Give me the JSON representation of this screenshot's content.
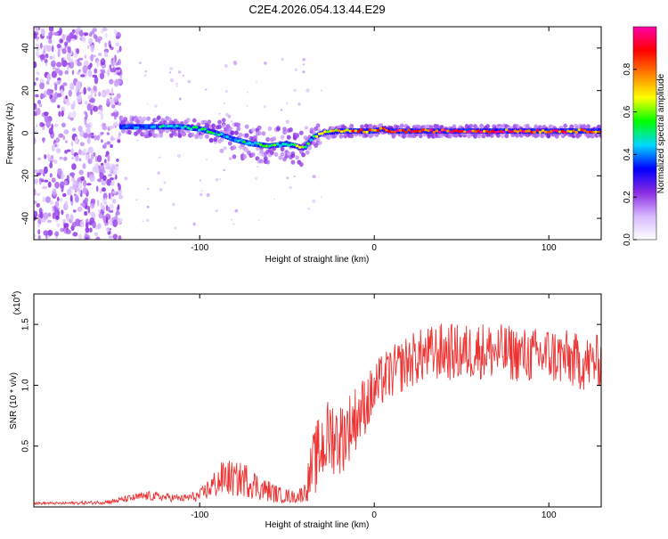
{
  "title": "C2E4.2026.054.13.44.E29",
  "chart_data": [
    {
      "type": "heatmap",
      "name": "spectrogram",
      "xlabel": "Height of straight line (km)",
      "ylabel": "Frequency (Hz)",
      "xlim": [
        -195,
        130
      ],
      "ylim": [
        -50,
        50
      ],
      "xticks": [
        -100,
        0,
        100
      ],
      "xtick_labels": [
        "-100",
        "0",
        "100"
      ],
      "yticks": [
        -40,
        -20,
        0,
        20,
        40
      ],
      "ytick_labels": [
        "-40",
        "-20",
        "0",
        "20",
        "40"
      ],
      "ridge": {
        "x": [
          -145,
          -130,
          -120,
          -110,
          -100,
          -90,
          -80,
          -70,
          -60,
          -50,
          -45,
          -40,
          -37,
          -35,
          -30,
          -20,
          -10,
          0,
          5,
          10,
          50,
          100,
          130
        ],
        "frequency": [
          3,
          3,
          3,
          3,
          2,
          0,
          -3,
          -5,
          -6,
          -5,
          -6,
          -7,
          -4,
          -2,
          0,
          1,
          1,
          1,
          2,
          1,
          1,
          1,
          1
        ],
        "amplitude": [
          0.35,
          0.4,
          0.45,
          0.45,
          0.5,
          0.5,
          0.45,
          0.5,
          0.55,
          0.55,
          0.6,
          0.55,
          0.5,
          0.6,
          0.7,
          0.75,
          0.8,
          0.85,
          0.8,
          0.9,
          0.9,
          0.85,
          0.8
        ]
      },
      "noise_region": [
        -195,
        -145
      ],
      "colorbar": {
        "label": "Normalized spectral amplitude",
        "range": [
          0,
          1
        ],
        "ticks": [
          0.0,
          0.2,
          0.4,
          0.6,
          0.8
        ],
        "tick_labels": [
          "0.0",
          "0.2",
          "0.4",
          "0.6",
          "0.8"
        ],
        "colors": [
          "#ffffff",
          "#d7b8ff",
          "#8a2be2",
          "#0000ff",
          "#00d8ff",
          "#00ff00",
          "#ffff00",
          "#ff7f00",
          "#ff0000",
          "#ff00aa"
        ]
      }
    },
    {
      "type": "line",
      "name": "snr",
      "xlabel": "Height of straight line (km)",
      "ylabel": "SNR (10 * v/v)",
      "scale_note": "(x10",
      "scale_exp": "4",
      "xlim": [
        -195,
        130
      ],
      "ylim": [
        0,
        17500
      ],
      "xticks": [
        -100,
        0,
        100
      ],
      "xtick_labels": [
        "-100",
        "0",
        "100"
      ],
      "yticks": [
        5000,
        10000,
        15000
      ],
      "ytick_labels": [
        "0.5",
        "1.0",
        "1.5"
      ],
      "color": "#ee3333",
      "series": [
        {
          "name": "SNR",
          "x": [
            -195,
            -180,
            -160,
            -150,
            -140,
            -130,
            -120,
            -110,
            -100,
            -95,
            -90,
            -85,
            -80,
            -75,
            -70,
            -65,
            -60,
            -55,
            -50,
            -45,
            -40,
            -37,
            -35,
            -33,
            -30,
            -27,
            -25,
            -22,
            -20,
            -17,
            -15,
            -12,
            -10,
            -7,
            -5,
            -2,
            0,
            5,
            10,
            15,
            20,
            25,
            30,
            40,
            50,
            60,
            70,
            80,
            90,
            100,
            110,
            120,
            130
          ],
          "mean": [
            300,
            300,
            350,
            450,
            700,
            900,
            800,
            700,
            900,
            1500,
            2000,
            2500,
            2200,
            2300,
            2000,
            1500,
            1300,
            1000,
            900,
            800,
            1200,
            2500,
            3500,
            4000,
            5000,
            5500,
            6000,
            5800,
            5500,
            6000,
            6500,
            7000,
            7500,
            8000,
            8500,
            9000,
            9500,
            10500,
            11000,
            11500,
            12000,
            12300,
            12500,
            12800,
            12600,
            12900,
            12700,
            12600,
            12400,
            12500,
            12200,
            11800,
            12000
          ],
          "spread": [
            100,
            100,
            150,
            200,
            300,
            400,
            350,
            300,
            500,
            900,
            1300,
            1600,
            1400,
            1500,
            1300,
            1000,
            900,
            700,
            600,
            500,
            800,
            2000,
            2600,
            3000,
            3200,
            3300,
            3300,
            3200,
            3100,
            3000,
            2900,
            2800,
            2700,
            2600,
            2500,
            2400,
            2300,
            2200,
            2200,
            2200,
            2300,
            2300,
            2300,
            2400,
            2400,
            2400,
            2400,
            2300,
            2300,
            2400,
            2400,
            2300,
            2200
          ]
        }
      ]
    }
  ]
}
